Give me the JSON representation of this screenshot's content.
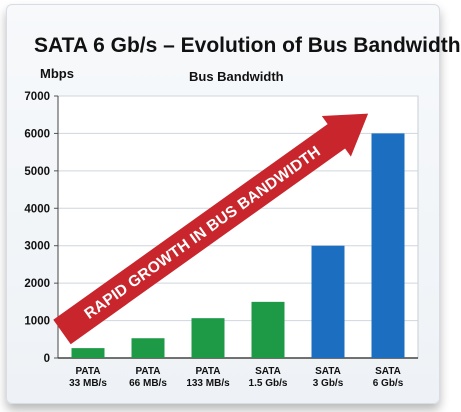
{
  "chart_data": {
    "type": "bar",
    "title": "SATA 6 Gb/s – Evolution of Bus Bandwidth",
    "ylabel": "Mbps",
    "series_label": "Bus Bandwidth",
    "ylim": [
      0,
      7000
    ],
    "yticks": [
      0,
      1000,
      2000,
      3000,
      4000,
      5000,
      6000,
      7000
    ],
    "grid": true,
    "categories": [
      [
        "PATA",
        "33 MB/s"
      ],
      [
        "PATA",
        "66 MB/s"
      ],
      [
        "PATA",
        "133 MB/s"
      ],
      [
        "SATA",
        "1.5 Gb/s"
      ],
      [
        "SATA",
        "3 Gb/s"
      ],
      [
        "SATA",
        "6 Gb/s"
      ]
    ],
    "values": [
      264,
      528,
      1064,
      1500,
      3000,
      6000
    ],
    "bar_colors": [
      "#1e9a47",
      "#1e9a47",
      "#1e9a47",
      "#1e9a47",
      "#1c6fc0",
      "#1c6fc0"
    ],
    "annotation": {
      "text": "RAPID GROWTH IN BUS BANDWIDTH",
      "color": "#c8262c",
      "style": "diagonal-arrow"
    }
  }
}
